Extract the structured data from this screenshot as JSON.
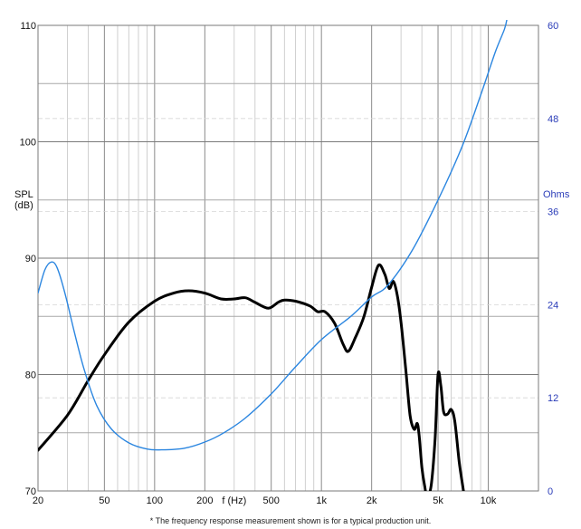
{
  "chart_data": {
    "type": "line",
    "x_scale": "log",
    "xlim": [
      20,
      20000
    ],
    "ylim_left": [
      70,
      110
    ],
    "ylim_right": [
      0,
      60
    ],
    "xlabel": "f (Hz)",
    "ylabel_left": [
      "SPL",
      "(dB)"
    ],
    "ylabel_right": "Ohms",
    "left_ticks": [
      "110",
      "100",
      "90",
      "80",
      "70"
    ],
    "left_tick_values": [
      110,
      100,
      90,
      80,
      70
    ],
    "right_ticks": [
      "60",
      "48",
      "36",
      "24",
      "12",
      "0"
    ],
    "right_tick_values": [
      60,
      48,
      36,
      24,
      12,
      0
    ],
    "x_ticks": [
      "20",
      "50",
      "100",
      "200",
      "f (Hz)",
      "500",
      "1k",
      "2k",
      "5k",
      "10k"
    ],
    "x_tick_values": [
      20,
      50,
      100,
      200,
      300,
      500,
      1000,
      2000,
      5000,
      10000
    ],
    "grid": true,
    "colors": {
      "spl": "#000000",
      "impedance": "#2b86e0",
      "right_axis": "#2a3cb8",
      "grid": "#999999"
    },
    "series": [
      {
        "axis": "left",
        "points": [
          [
            20,
            73.5
          ],
          [
            30,
            76.5
          ],
          [
            40,
            79.5
          ],
          [
            50,
            81.7
          ],
          [
            70,
            84.5
          ],
          [
            100,
            86.3
          ],
          [
            130,
            87.0
          ],
          [
            160,
            87.2
          ],
          [
            200,
            87.0
          ],
          [
            250,
            86.5
          ],
          [
            300,
            86.5
          ],
          [
            350,
            86.6
          ],
          [
            400,
            86.2
          ],
          [
            480,
            85.7
          ],
          [
            550,
            86.2
          ],
          [
            600,
            86.4
          ],
          [
            700,
            86.3
          ],
          [
            850,
            85.9
          ],
          [
            950,
            85.4
          ],
          [
            1050,
            85.4
          ],
          [
            1200,
            84.4
          ],
          [
            1350,
            82.6
          ],
          [
            1450,
            82.0
          ],
          [
            1600,
            83.2
          ],
          [
            1800,
            85.0
          ],
          [
            2000,
            87.5
          ],
          [
            2200,
            89.4
          ],
          [
            2400,
            88.6
          ],
          [
            2550,
            87.4
          ],
          [
            2700,
            88.0
          ],
          [
            2850,
            86.8
          ],
          [
            3000,
            84.5
          ],
          [
            3200,
            80.5
          ],
          [
            3400,
            76.5
          ],
          [
            3600,
            75.3
          ],
          [
            3750,
            75.8
          ],
          [
            3850,
            74.8
          ],
          [
            4000,
            72.0
          ],
          [
            4150,
            70.5
          ],
          [
            4300,
            69.5
          ],
          [
            4550,
            70.5
          ],
          [
            4800,
            74.5
          ],
          [
            5000,
            80.0
          ],
          [
            5200,
            79.0
          ],
          [
            5400,
            76.8
          ],
          [
            5700,
            76.6
          ],
          [
            6000,
            77.0
          ],
          [
            6300,
            76.0
          ],
          [
            6700,
            72.5
          ],
          [
            7100,
            70.0
          ],
          [
            7400,
            68.0
          ]
        ]
      },
      {
        "axis": "right",
        "points": [
          [
            20,
            25.5
          ],
          [
            22,
            28.5
          ],
          [
            24,
            29.5
          ],
          [
            26,
            28.8
          ],
          [
            29,
            25.5
          ],
          [
            33,
            20.5
          ],
          [
            38,
            15.5
          ],
          [
            45,
            11.0
          ],
          [
            55,
            8.0
          ],
          [
            70,
            6.2
          ],
          [
            90,
            5.4
          ],
          [
            110,
            5.3
          ],
          [
            150,
            5.5
          ],
          [
            200,
            6.3
          ],
          [
            260,
            7.5
          ],
          [
            350,
            9.4
          ],
          [
            500,
            12.5
          ],
          [
            700,
            16.0
          ],
          [
            1000,
            19.5
          ],
          [
            1500,
            22.5
          ],
          [
            2000,
            25.0
          ],
          [
            2500,
            26.5
          ],
          [
            3500,
            31.0
          ],
          [
            5000,
            37.5
          ],
          [
            7000,
            44.5
          ],
          [
            9000,
            51.0
          ],
          [
            11000,
            56.5
          ],
          [
            12500,
            59.5
          ],
          [
            13000,
            61.0
          ]
        ]
      }
    ]
  },
  "footnote": "* The frequency response measurement shown is for a typical production unit."
}
